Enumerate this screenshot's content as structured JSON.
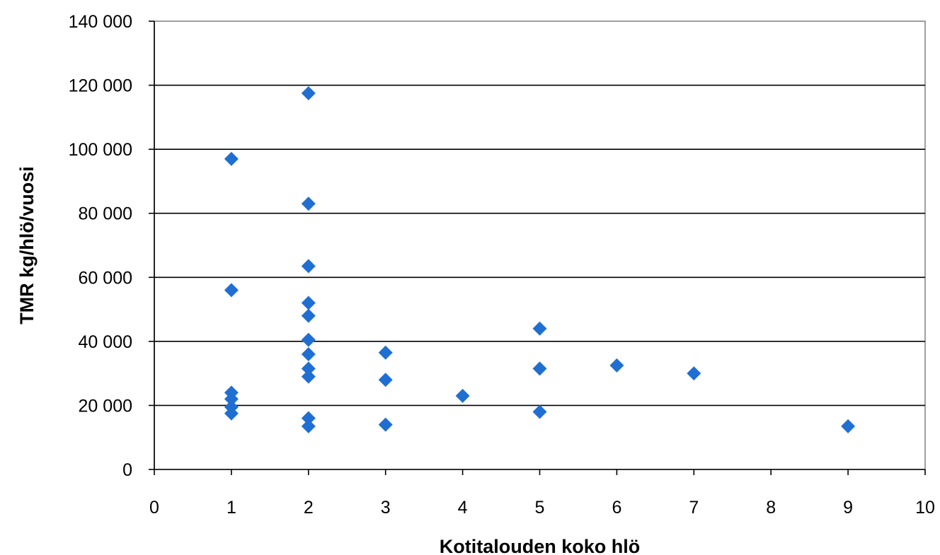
{
  "chart_data": {
    "type": "scatter",
    "title": "",
    "xlabel": "Kotitalouden koko hlö",
    "ylabel": "TMR kg/hlö/vuosi",
    "xlim": [
      0,
      10
    ],
    "ylim": [
      0,
      140000
    ],
    "x_ticks": [
      0,
      1,
      2,
      3,
      4,
      5,
      6,
      7,
      8,
      9,
      10
    ],
    "x_tick_labels": [
      "0",
      "1",
      "2",
      "3",
      "4",
      "5",
      "6",
      "7",
      "8",
      "9",
      "10"
    ],
    "y_ticks": [
      0,
      20000,
      40000,
      60000,
      80000,
      100000,
      120000,
      140000
    ],
    "y_tick_labels": [
      "0",
      "20 000",
      "40 000",
      "60 000",
      "80 000",
      "100 000",
      "120 000",
      "140 000"
    ],
    "grid": "horizontal",
    "legend": "none",
    "marker": "diamond",
    "series": [
      {
        "color": "#1f6fd2",
        "points": [
          {
            "x": 1,
            "y": 97000
          },
          {
            "x": 1,
            "y": 56000
          },
          {
            "x": 1,
            "y": 24000
          },
          {
            "x": 1,
            "y": 22000
          },
          {
            "x": 1,
            "y": 19500
          },
          {
            "x": 1,
            "y": 17500
          },
          {
            "x": 2,
            "y": 117500
          },
          {
            "x": 2,
            "y": 83000
          },
          {
            "x": 2,
            "y": 63500
          },
          {
            "x": 2,
            "y": 52000
          },
          {
            "x": 2,
            "y": 48000
          },
          {
            "x": 2,
            "y": 40500
          },
          {
            "x": 2,
            "y": 36000
          },
          {
            "x": 2,
            "y": 31500
          },
          {
            "x": 2,
            "y": 29000
          },
          {
            "x": 2,
            "y": 16000
          },
          {
            "x": 2,
            "y": 13500
          },
          {
            "x": 3,
            "y": 36500
          },
          {
            "x": 3,
            "y": 28000
          },
          {
            "x": 3,
            "y": 14000
          },
          {
            "x": 4,
            "y": 23000
          },
          {
            "x": 5,
            "y": 44000
          },
          {
            "x": 5,
            "y": 31500
          },
          {
            "x": 5,
            "y": 18000
          },
          {
            "x": 6,
            "y": 32500
          },
          {
            "x": 7,
            "y": 30000
          },
          {
            "x": 9,
            "y": 13500
          }
        ]
      }
    ]
  }
}
